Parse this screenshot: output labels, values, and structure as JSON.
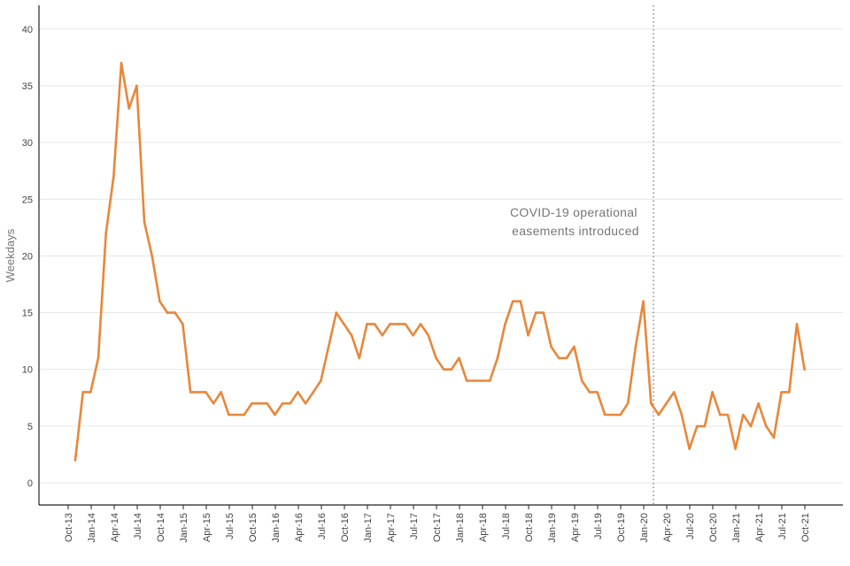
{
  "chart_data": {
    "type": "line",
    "title": "",
    "xlabel": "",
    "ylabel": "Weekdays",
    "ylim": [
      -2,
      42
    ],
    "yticks": [
      0,
      5,
      10,
      15,
      20,
      25,
      30,
      35,
      40
    ],
    "grid": "horizontal",
    "x_tick_labels": [
      "Oct-13",
      "Jan-14",
      "Apr-14",
      "Jul-14",
      "Oct-14",
      "Jan-15",
      "Apr-15",
      "Jul-15",
      "Oct-15",
      "Jan-16",
      "Apr-16",
      "Jul-16",
      "Oct-16",
      "Jan-17",
      "Apr-17",
      "Jul-17",
      "Oct-17",
      "Jan-18",
      "Apr-18",
      "Jul-18",
      "Oct-18",
      "Jan-19",
      "Apr-19",
      "Jul-19",
      "Oct-19",
      "Jan-20",
      "Apr-20",
      "Jul-20",
      "Oct-20",
      "Jan-21",
      "Apr-21",
      "Jul-21",
      "Oct-21"
    ],
    "series": [
      {
        "color": "#e8873a",
        "values": [
          2,
          8,
          8,
          11,
          22,
          27,
          37,
          33,
          35,
          23,
          20,
          16,
          15,
          15,
          14,
          8,
          8,
          8,
          7,
          8,
          6,
          6,
          6,
          7,
          7,
          7,
          6,
          7,
          7,
          8,
          7,
          8,
          9,
          12,
          15,
          14,
          13,
          11,
          14,
          14,
          13,
          14,
          14,
          14,
          13,
          14,
          13,
          11,
          10,
          10,
          11,
          9,
          9,
          9,
          9,
          11,
          14,
          16,
          16,
          13,
          15,
          15,
          12,
          11,
          11,
          12,
          9,
          8,
          8,
          6,
          6,
          6,
          7,
          12,
          16,
          7,
          6,
          7,
          8,
          6,
          3,
          5,
          5,
          8,
          6,
          6,
          3,
          6,
          5,
          7,
          5,
          4,
          8,
          8,
          14,
          10
        ]
      }
    ],
    "reference_line": {
      "after_tick": "Jan-20",
      "color": "#8a8a8a",
      "style": "dotted"
    },
    "annotation": {
      "lines": [
        "COVID-19 operational",
        "easements introduced"
      ]
    }
  },
  "colors": {
    "line": "#e8873a",
    "grid": "#e6e6e6",
    "axis": "#222222"
  }
}
